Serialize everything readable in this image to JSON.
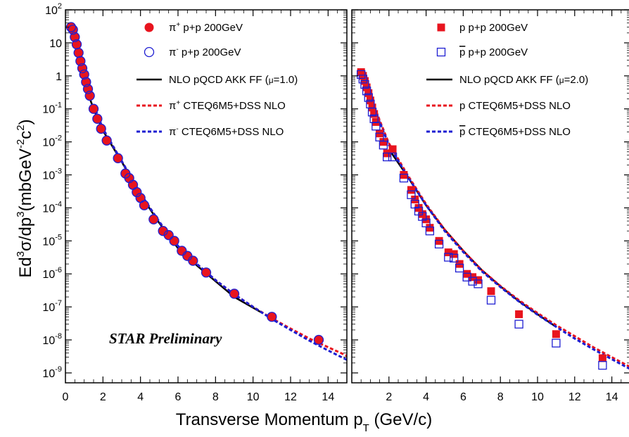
{
  "chart_data": [
    {
      "type": "scatter",
      "panel": "left",
      "xlim": [
        0,
        15
      ],
      "ylim_log10": [
        -9.3,
        2
      ],
      "y_scale": "log",
      "grid": false,
      "legend_placement": "top-right",
      "xticks": [
        "0",
        "2",
        "4",
        "6",
        "8",
        "10",
        "12",
        "14"
      ],
      "series": [
        {
          "name": "π⁺ p+p 200GeV",
          "legend": {
            "base": "π",
            "sup": "+",
            "rest": " p+p 200GeV"
          },
          "marker": "filled-circle",
          "color": "#e8141e",
          "x": [
            0.3,
            0.4,
            0.5,
            0.6,
            0.7,
            0.8,
            0.9,
            1.0,
            1.1,
            1.2,
            1.3,
            1.5,
            1.7,
            1.9,
            2.2,
            2.8,
            3.2,
            3.4,
            3.6,
            3.8,
            4.0,
            4.2,
            4.7,
            5.2,
            5.5,
            5.8,
            6.2,
            6.5,
            6.8,
            7.5,
            9.0,
            11.0,
            13.5
          ],
          "y": [
            30,
            25,
            15,
            9,
            5,
            2.8,
            1.7,
            1.1,
            0.65,
            0.4,
            0.25,
            0.1,
            0.05,
            0.025,
            0.011,
            0.0032,
            0.0011,
            0.0008,
            0.0005,
            0.0003,
            0.0002,
            0.00012,
            4.5e-05,
            2e-05,
            1.5e-05,
            1e-05,
            5e-06,
            3.5e-06,
            2.5e-06,
            1.1e-06,
            2.5e-07,
            5e-08,
            1e-08
          ]
        },
        {
          "name": "π⁻ p+p 200GeV",
          "legend": {
            "base": "π",
            "sup": "-",
            "rest": " p+p 200GeV"
          },
          "marker": "open-circle",
          "color": "#1e1ed2",
          "x": [
            0.3,
            0.4,
            0.5,
            0.6,
            0.7,
            0.8,
            0.9,
            1.0,
            1.1,
            1.2,
            1.3,
            1.5,
            1.7,
            1.9,
            2.2,
            2.8,
            3.2,
            3.4,
            3.6,
            3.8,
            4.0,
            4.2,
            4.7,
            5.2,
            5.5,
            5.8,
            6.2,
            6.5,
            6.8,
            7.5,
            9.0,
            11.0,
            13.5
          ],
          "y": [
            30,
            25,
            15,
            9,
            5,
            2.8,
            1.7,
            1.1,
            0.65,
            0.4,
            0.25,
            0.1,
            0.05,
            0.025,
            0.011,
            0.0032,
            0.0011,
            0.0008,
            0.0005,
            0.0003,
            0.0002,
            0.00012,
            4.5e-05,
            2e-05,
            1.5e-05,
            1e-05,
            5e-06,
            3.5e-06,
            2.5e-06,
            1.1e-06,
            2.5e-07,
            5e-08,
            1e-08
          ]
        }
      ],
      "curves": [
        {
          "name": "NLO pQCD AKK FF (μ=1.0)",
          "legend": {
            "base": "NLO pQCD AKK FF (",
            "mu": "μ",
            "rest": "=1.0)"
          },
          "style": "solid",
          "color": "#000000",
          "x": [
            1.0,
            1.5,
            2.0,
            3.0,
            4.0,
            5.0,
            6.0,
            7.0,
            8.0,
            9.0,
            10.5
          ],
          "y": [
            0.6,
            0.1,
            0.022,
            0.0025,
            0.00025,
            3.5e-05,
            6e-06,
            1.8e-06,
            6e-07,
            2e-07,
            6.5e-08
          ]
        },
        {
          "name": "π⁺ CTEQ6M5+DSS NLO",
          "legend": {
            "base": "π",
            "sup": "+",
            "rest": " CTEQ6M5+DSS NLO"
          },
          "style": "dotted",
          "color": "#e8141e",
          "x": [
            1.5,
            2.0,
            3.0,
            4.0,
            5.0,
            6.0,
            7.0,
            8.0,
            9.0,
            10.0,
            11.0,
            12.0,
            13.0,
            14.0,
            15.0
          ],
          "y": [
            0.13,
            0.025,
            0.0026,
            0.00027,
            3.8e-05,
            7e-06,
            2e-06,
            6.5e-07,
            2.4e-07,
            1e-07,
            4.5e-08,
            2.2e-08,
            1.1e-08,
            6e-09,
            3.3e-09
          ]
        },
        {
          "name": "π⁻ CTEQ6M5+DSS NLO",
          "legend": {
            "base": "π",
            "sup": "-",
            "rest": " CTEQ6M5+DSS NLO"
          },
          "style": "dotted",
          "color": "#1e1ed2",
          "x": [
            1.5,
            2.0,
            3.0,
            4.0,
            5.0,
            6.0,
            7.0,
            8.0,
            9.0,
            10.0,
            11.0,
            12.0,
            13.0,
            14.0,
            15.0
          ],
          "y": [
            0.13,
            0.025,
            0.0026,
            0.00027,
            3.8e-05,
            7e-06,
            2e-06,
            6.5e-07,
            2.4e-07,
            1e-07,
            4.3e-08,
            2e-08,
            9.5e-09,
            4.8e-09,
            2.5e-09
          ]
        }
      ],
      "annotation": "STAR Preliminary"
    },
    {
      "type": "scatter",
      "panel": "right",
      "xlim": [
        0,
        15
      ],
      "ylim_log10": [
        -9.3,
        2
      ],
      "y_scale": "log",
      "grid": false,
      "legend_placement": "top-right",
      "xticks": [
        "2",
        "4",
        "6",
        "8",
        "10",
        "12",
        "14"
      ],
      "series": [
        {
          "name": "p p+p 200GeV",
          "legend": {
            "base": "p",
            "overline": false,
            "rest": " p+p 200GeV"
          },
          "marker": "filled-square",
          "color": "#e8141e",
          "x": [
            0.5,
            0.6,
            0.7,
            0.8,
            0.9,
            1.0,
            1.1,
            1.2,
            1.3,
            1.5,
            1.7,
            1.9,
            2.2,
            2.8,
            3.2,
            3.4,
            3.6,
            3.8,
            4.0,
            4.2,
            4.7,
            5.2,
            5.5,
            5.8,
            6.2,
            6.5,
            6.8,
            7.5,
            9.0,
            11.0,
            13.5
          ],
          "y": [
            1.3,
            1.0,
            0.7,
            0.45,
            0.3,
            0.18,
            0.11,
            0.07,
            0.04,
            0.018,
            0.01,
            0.0045,
            0.006,
            0.001,
            0.00035,
            0.00018,
            0.0001,
            6.5e-05,
            4.5e-05,
            2.5e-05,
            1e-05,
            4.5e-06,
            4e-06,
            2e-06,
            1e-06,
            8e-07,
            6.5e-07,
            3e-07,
            6e-08,
            1.5e-08,
            2.8e-09
          ]
        },
        {
          "name": "p̄ p+p 200GeV",
          "legend": {
            "base": "p",
            "overline": true,
            "rest": " p+p 200GeV"
          },
          "marker": "open-square",
          "color": "#1e1ed2",
          "x": [
            0.5,
            0.6,
            0.7,
            0.8,
            0.9,
            1.0,
            1.1,
            1.2,
            1.3,
            1.5,
            1.7,
            1.9,
            2.2,
            2.8,
            3.2,
            3.4,
            3.6,
            3.8,
            4.0,
            4.2,
            4.7,
            5.2,
            5.5,
            5.8,
            6.2,
            6.5,
            6.8,
            7.5,
            9.0,
            11.0,
            13.5
          ],
          "y": [
            1.1,
            0.8,
            0.55,
            0.35,
            0.22,
            0.14,
            0.08,
            0.05,
            0.03,
            0.014,
            0.008,
            0.0035,
            0.0035,
            0.0008,
            0.00025,
            0.00013,
            8e-05,
            5.5e-05,
            3.5e-05,
            2e-05,
            8e-06,
            3.2e-06,
            3e-06,
            1.5e-06,
            8e-07,
            6e-07,
            5e-07,
            1.6e-07,
            3e-08,
            8e-09,
            1.7e-09
          ]
        }
      ],
      "curves": [
        {
          "name": "NLO pQCD AKK FF (μ=2.0)",
          "legend": {
            "base": "NLO pQCD AKK FF (",
            "mu": "μ",
            "rest": "=2.0)"
          },
          "style": "solid",
          "color": "#000000",
          "x": [
            2.0,
            3.0,
            4.0,
            5.0,
            6.0,
            7.0,
            8.0,
            9.0,
            10.0,
            11.0
          ],
          "y": [
            0.006,
            0.0009,
            0.00012,
            2.2e-05,
            5e-06,
            1.3e-06,
            4.2e-07,
            1.5e-07,
            6e-08,
            2.5e-08
          ]
        },
        {
          "name": "p CTEQ6M5+DSS NLO",
          "legend": {
            "base": "p",
            "overline": false,
            "rest": " CTEQ6M5+DSS NLO"
          },
          "style": "dotted",
          "color": "#e8141e",
          "x": [
            1.0,
            1.5,
            2.0,
            3.0,
            4.0,
            5.0,
            6.0,
            7.0,
            8.0,
            9.0,
            10.0,
            11.0,
            12.0,
            13.0,
            14.0,
            15.0
          ],
          "y": [
            0.25,
            0.045,
            0.009,
            0.001,
            0.00013,
            2.2e-05,
            5e-06,
            1.3e-06,
            4.3e-07,
            1.6e-07,
            6.5e-08,
            2.8e-08,
            1.3e-08,
            6e-09,
            3e-09,
            1.5e-09
          ]
        },
        {
          "name": "p̄ CTEQ6M5+DSS NLO",
          "legend": {
            "base": "p",
            "overline": true,
            "rest": " CTEQ6M5+DSS NLO"
          },
          "style": "dotted",
          "color": "#1e1ed2",
          "x": [
            1.0,
            1.5,
            2.0,
            3.0,
            4.0,
            5.0,
            6.0,
            7.0,
            8.0,
            9.0,
            10.0,
            11.0,
            12.0,
            13.0,
            14.0,
            15.0
          ],
          "y": [
            0.22,
            0.04,
            0.008,
            0.0009,
            0.00012,
            2e-05,
            4.6e-06,
            1.2e-06,
            4e-07,
            1.45e-07,
            5.8e-08,
            2.5e-08,
            1.1e-08,
            5.2e-09,
            2.6e-09,
            1.3e-09
          ]
        }
      ]
    }
  ],
  "y_axis": {
    "label": {
      "a": "Ed",
      "a_sup": "3",
      "b": "σ/dp",
      "b_sup": "3",
      "c": "(mbGeV",
      "c_sup": "-2",
      "d": "c",
      "d_sup": "2",
      "e": ")"
    },
    "tick_labels": [
      {
        "base": "10",
        "exp": "2"
      },
      {
        "plain": "10"
      },
      {
        "plain": "1"
      },
      {
        "base": "10",
        "exp": "-1"
      },
      {
        "base": "10",
        "exp": "-2"
      },
      {
        "base": "10",
        "exp": "-3"
      },
      {
        "base": "10",
        "exp": "-4"
      },
      {
        "base": "10",
        "exp": "-5"
      },
      {
        "base": "10",
        "exp": "-6"
      },
      {
        "base": "10",
        "exp": "-7"
      },
      {
        "base": "10",
        "exp": "-8"
      },
      {
        "base": "10",
        "exp": "-9"
      }
    ]
  },
  "x_axis": {
    "label": {
      "main": "Transverse Momentum p",
      "sub": "T",
      "rest": " (GeV/c)"
    }
  },
  "colors": {
    "red": "#e8141e",
    "blue": "#1e1ed2",
    "black": "#000000"
  }
}
